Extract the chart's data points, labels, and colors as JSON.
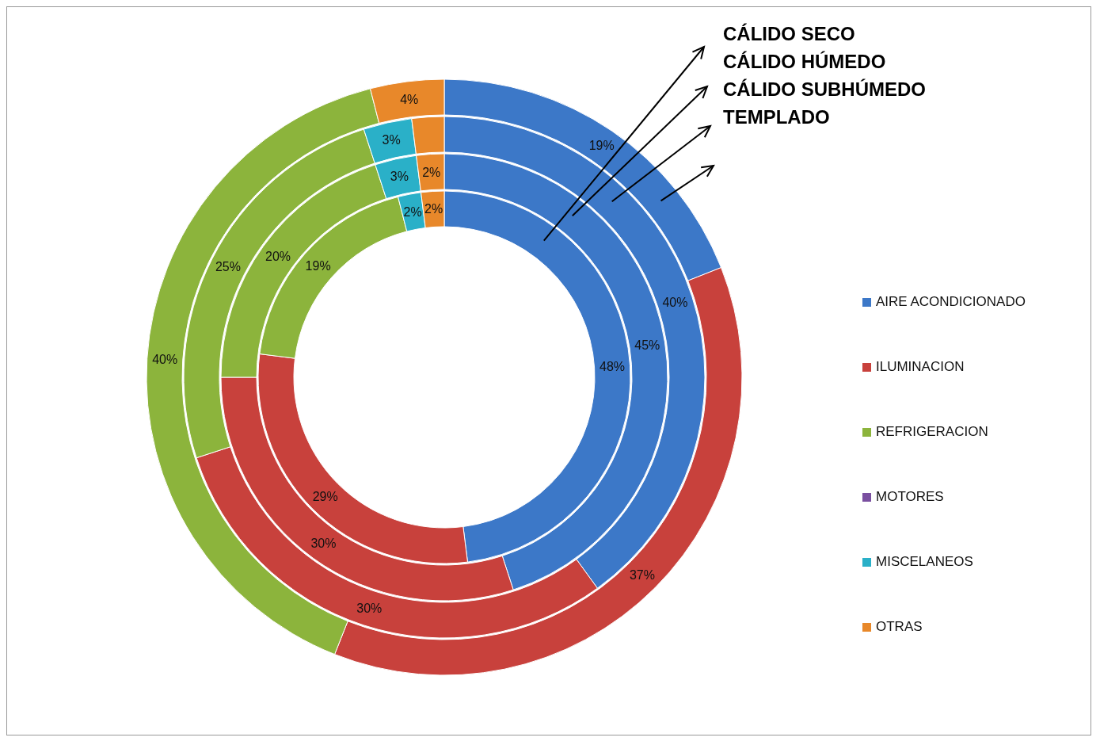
{
  "chart_data": {
    "type": "donut",
    "categories": [
      "AIRE ACONDICIONADO",
      "ILUMINACION",
      "REFRIGERACION",
      "MOTORES",
      "MISCELANEOS",
      "OTRAS"
    ],
    "colors": [
      "#3c78c8",
      "#c8413c",
      "#8cb43c",
      "#7a4fa0",
      "#2ab0c8",
      "#e8882a"
    ],
    "series": [
      {
        "name": "CÁLIDO SECO",
        "values": [
          48,
          29,
          19,
          0,
          2,
          2
        ],
        "value_labels": [
          "48%",
          "29%",
          "19%",
          null,
          "2%",
          "2%"
        ]
      },
      {
        "name": "CÁLIDO HÚMEDO",
        "values": [
          45,
          30,
          20,
          0,
          3,
          2
        ],
        "value_labels": [
          "45%",
          "30%",
          "20%",
          null,
          "3%",
          "2%"
        ]
      },
      {
        "name": "CÁLIDO SUBHÚMEDO",
        "values": [
          40,
          30,
          25,
          0,
          3,
          2
        ],
        "value_labels": [
          "40%",
          "30%",
          "25%",
          null,
          "3%",
          null
        ]
      },
      {
        "name": "TEMPLADO",
        "values": [
          19,
          37,
          40,
          0,
          0,
          4
        ],
        "value_labels": [
          "19%",
          "37%",
          "40%",
          null,
          null,
          "4%"
        ]
      }
    ],
    "legend": "right"
  }
}
